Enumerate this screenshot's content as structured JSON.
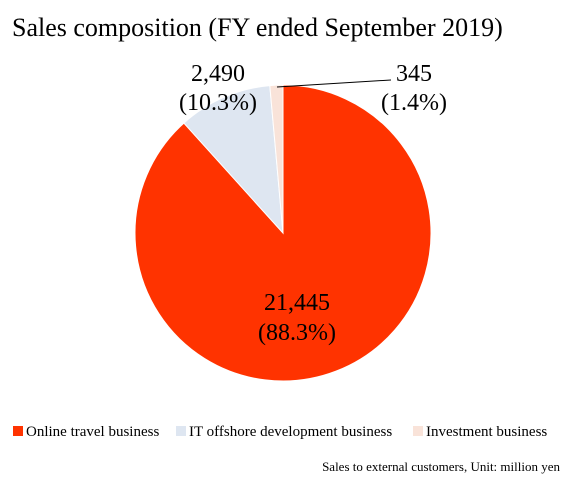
{
  "chart_data": {
    "type": "pie",
    "title": "Sales composition (FY ended September 2019)",
    "footnote": "Sales to external customers, Unit: million yen",
    "legend_position": "bottom",
    "start_angle_deg": 0,
    "direction": "clockwise",
    "slices": [
      {
        "label": "Online travel business",
        "value": 21445,
        "value_label": "21,445",
        "percent_label": "(88.3%)",
        "color": "#FF3300"
      },
      {
        "label": "IT offshore development business",
        "value": 2490,
        "value_label": "2,490",
        "percent_label": "(10.3%)",
        "color": "#DEE6F1"
      },
      {
        "label": "Investment business",
        "value": 345,
        "value_label": "345",
        "percent_label": "(1.4%)",
        "color": "#F9E3D9"
      }
    ]
  }
}
